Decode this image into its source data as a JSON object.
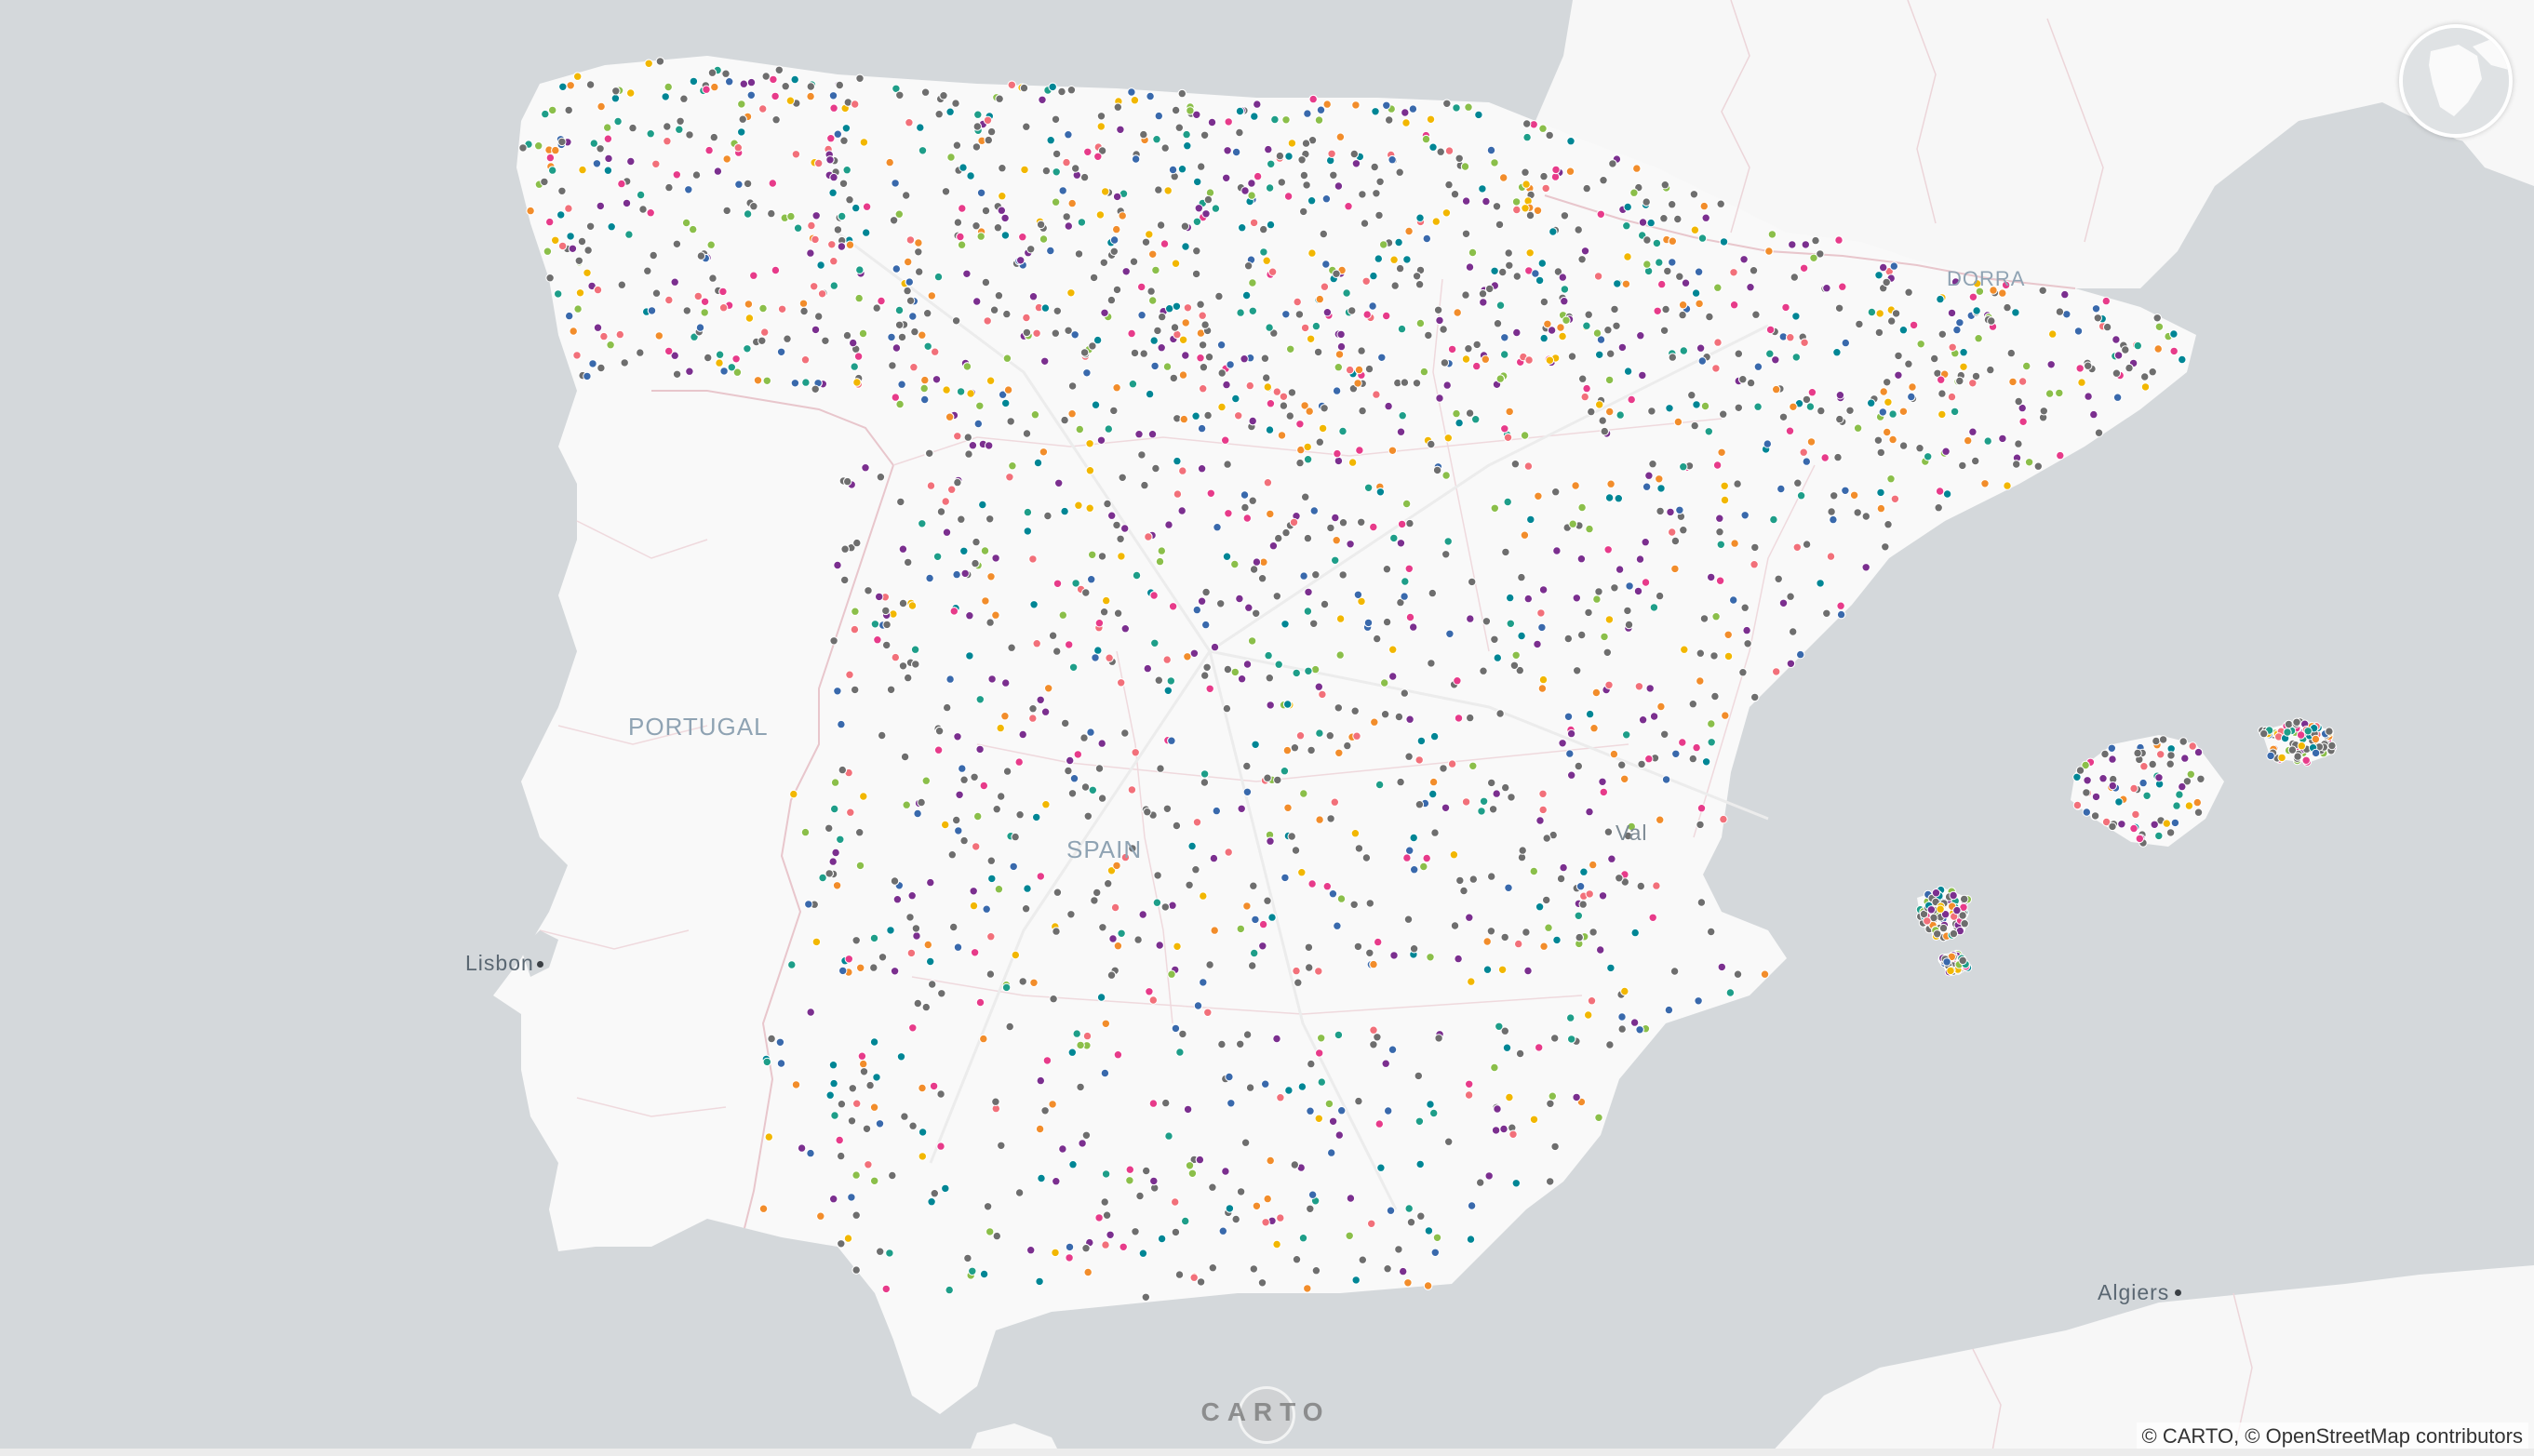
{
  "map": {
    "labels": {
      "portugal": "PORTUGAL",
      "spain": "SPAIN",
      "andorra": "DORRA",
      "lisbon": "Lisbon",
      "algiers": "Algiers",
      "valencia": "Val"
    },
    "attribution": "© CARTO, © OpenStreetMap contributors",
    "logo": "CARTO",
    "colors": {
      "sea": "#d4d8db",
      "land": "#f9f9f9",
      "border": "#e8c6cc",
      "points": [
        "#6e6e6e",
        "#6e6e6e",
        "#6e6e6e",
        "#6e6e6e",
        "#6e6e6e",
        "#7b2f8f",
        "#7b2f8f",
        "#f2707a",
        "#8bbf4a",
        "#f2b701",
        "#1e9e89",
        "#e73b8a",
        "#f28d2b",
        "#3969ac",
        "#008695"
      ]
    }
  }
}
